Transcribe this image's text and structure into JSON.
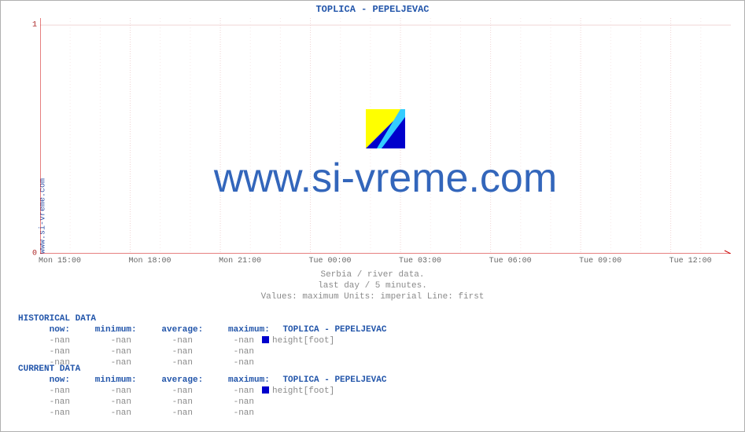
{
  "title": "TOPLICA -  PEPELJEVAC",
  "site_label": "www.si-vreme.com",
  "watermark": "www.si-vreme.com",
  "chart": {
    "type": "line",
    "background_color": "#ffffff",
    "grid_color_major": "#f0d4d4",
    "grid_color_minor": "#f7e8e8",
    "axis_color": "#cc0000",
    "xlim_labels": [
      "Mon 15:00",
      "Mon 18:00",
      "Mon 21:00",
      "Tue 00:00",
      "Tue 03:00",
      "Tue 06:00",
      "Tue 09:00",
      "Tue 12:00"
    ],
    "xtick_positions_pct": [
      0,
      13.04,
      26.09,
      39.13,
      52.17,
      65.22,
      78.26,
      91.3
    ],
    "xminor_per_major": 3,
    "ylim": [
      0,
      1
    ],
    "ytick_values": [
      0,
      1
    ],
    "tick_label_color": "#aa2222",
    "tick_font_size": 10,
    "title_color": "#2255aa",
    "title_fontsize": 12,
    "watermark_color": "#3366bb",
    "watermark_fontsize": 52,
    "logo_colors": {
      "yellow": "#ffff00",
      "cyan": "#33ccff",
      "blue": "#0000cc"
    }
  },
  "caption": {
    "line1": "Serbia / river data.",
    "line2": "last day / 5 minutes.",
    "line3": "Values: maximum  Units: imperial  Line: first"
  },
  "historical": {
    "title": "HISTORICAL DATA",
    "headers": {
      "now": "now:",
      "min": "minimum:",
      "avg": "average:",
      "max": "maximum:",
      "series": "TOPLICA -  PEPELJEVAC"
    },
    "rows": [
      {
        "now": "-nan",
        "min": "-nan",
        "avg": "-nan",
        "max": "-nan",
        "label": "height[foot]",
        "marker_color": "#0000cc"
      },
      {
        "now": "-nan",
        "min": "-nan",
        "avg": "-nan",
        "max": "-nan",
        "label": "",
        "marker_color": ""
      },
      {
        "now": "-nan",
        "min": "-nan",
        "avg": "-nan",
        "max": "-nan",
        "label": "",
        "marker_color": ""
      }
    ]
  },
  "current": {
    "title": "CURRENT DATA",
    "headers": {
      "now": "now:",
      "min": "minimum:",
      "avg": "average:",
      "max": "maximum:",
      "series": "TOPLICA -  PEPELJEVAC"
    },
    "rows": [
      {
        "now": "-nan",
        "min": "-nan",
        "avg": "-nan",
        "max": "-nan",
        "label": "height[foot]",
        "marker_color": "#0000cc"
      },
      {
        "now": "-nan",
        "min": "-nan",
        "avg": "-nan",
        "max": "-nan",
        "label": "",
        "marker_color": ""
      },
      {
        "now": "-nan",
        "min": "-nan",
        "avg": "-nan",
        "max": "-nan",
        "label": "",
        "marker_color": ""
      }
    ]
  }
}
